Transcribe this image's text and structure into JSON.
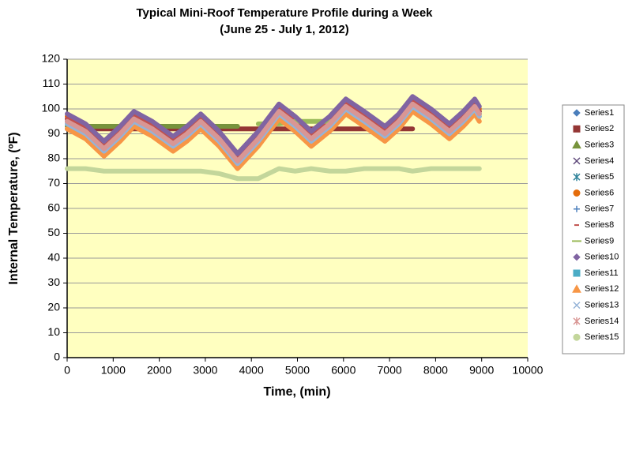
{
  "chart_data": {
    "type": "line",
    "title": "Typical Mini-Roof Temperature Profile during a Week",
    "subtitle": "(June 25 - July 1, 2012)",
    "x_label": "Time, (min)",
    "y_label": "Internal Temperature, (ºF)",
    "x": [
      0,
      400,
      800,
      1150,
      1450,
      1850,
      2300,
      2600,
      2900,
      3300,
      3700,
      4150,
      4600,
      4950,
      5300,
      5700,
      6050,
      6450,
      6900,
      7200,
      7500,
      7900,
      8300,
      8600,
      8850,
      8950
    ],
    "series": [
      {
        "name": "Series1",
        "color": "#4a7ebb",
        "marker": "diamond",
        "values": [
          96,
          92,
          85,
          91,
          97,
          93,
          87,
          91,
          96,
          89,
          80,
          89,
          100,
          95,
          89,
          95,
          102,
          97,
          91,
          96,
          103,
          98,
          92,
          97,
          102,
          99
        ]
      },
      {
        "name": "Series2",
        "color": "#943634",
        "marker": "square",
        "values": [
          92,
          92,
          92,
          92,
          92,
          92,
          92,
          92,
          92,
          92,
          92,
          92,
          92,
          92,
          92,
          92,
          92,
          92,
          92,
          92,
          92,
          null,
          null,
          null,
          null,
          null
        ]
      },
      {
        "name": "Series3",
        "color": "#77933c",
        "marker": "triangle",
        "values": [
          93,
          93,
          93,
          93,
          93,
          93,
          93,
          93,
          93,
          93,
          93,
          null,
          null,
          null,
          null,
          null,
          null,
          null,
          null,
          null,
          null,
          null,
          null,
          null,
          null,
          null
        ]
      },
      {
        "name": "Series4",
        "color": "#604a7b",
        "marker": "x",
        "values": [
          96,
          92,
          85,
          91,
          97,
          93,
          87,
          91,
          96,
          89,
          80,
          89,
          100,
          95,
          89,
          95,
          102,
          97,
          91,
          96,
          103,
          98,
          92,
          97,
          102,
          99
        ]
      },
      {
        "name": "Series5",
        "color": "#31849b",
        "marker": "star",
        "values": [
          95,
          91,
          84,
          90,
          96,
          92,
          86,
          90,
          95,
          88,
          79,
          88,
          99,
          94,
          88,
          94,
          101,
          96,
          90,
          95,
          102,
          97,
          91,
          96,
          101,
          98
        ]
      },
      {
        "name": "Series6",
        "color": "#e46c0a",
        "marker": "circle",
        "values": [
          97,
          93,
          86,
          92,
          98,
          94,
          88,
          92,
          97,
          90,
          81,
          90,
          101,
          96,
          90,
          96,
          103,
          98,
          92,
          97,
          104,
          99,
          93,
          98,
          103,
          100
        ]
      },
      {
        "name": "Series7",
        "color": "#4f81bd",
        "marker": "plus",
        "values": [
          95,
          91,
          84,
          90,
          96,
          92,
          86,
          90,
          95,
          88,
          79,
          88,
          99,
          94,
          88,
          94,
          101,
          96,
          90,
          95,
          102,
          97,
          91,
          96,
          101,
          98
        ]
      },
      {
        "name": "Series8",
        "color": "#c0504d",
        "marker": "dash",
        "values": [
          96,
          92,
          85,
          91,
          97,
          93,
          87,
          91,
          96,
          89,
          80,
          89,
          100,
          95,
          89,
          95,
          102,
          97,
          91,
          96,
          103,
          98,
          92,
          97,
          102,
          99
        ]
      },
      {
        "name": "Series9",
        "color": "#9bbb59",
        "marker": "longdash",
        "values": [
          null,
          null,
          null,
          null,
          null,
          null,
          null,
          null,
          null,
          null,
          null,
          94,
          94,
          95,
          95,
          95,
          null,
          null,
          null,
          null,
          null,
          null,
          null,
          null,
          null,
          null
        ]
      },
      {
        "name": "Series10",
        "color": "#8064a2",
        "marker": "diamond",
        "values": [
          98,
          94,
          87,
          93,
          99,
          95,
          89,
          93,
          98,
          91,
          82,
          91,
          102,
          97,
          91,
          97,
          104,
          99,
          93,
          98,
          105,
          100,
          94,
          99,
          104,
          101
        ]
      },
      {
        "name": "Series11",
        "color": "#4bacc6",
        "marker": "square",
        "values": [
          94,
          90,
          83,
          89,
          95,
          91,
          85,
          89,
          94,
          87,
          78,
          87,
          98,
          93,
          87,
          93,
          100,
          95,
          89,
          94,
          101,
          96,
          90,
          95,
          100,
          97
        ]
      },
      {
        "name": "Series12",
        "color": "#f79646",
        "marker": "triangle",
        "values": [
          92,
          88,
          81,
          87,
          93,
          89,
          83,
          87,
          92,
          85,
          76,
          85,
          96,
          91,
          85,
          91,
          98,
          93,
          87,
          92,
          99,
          94,
          88,
          93,
          98,
          95
        ]
      },
      {
        "name": "Series13",
        "color": "#95b3d7",
        "marker": "x",
        "values": [
          94,
          90,
          83,
          89,
          95,
          91,
          85,
          89,
          94,
          87,
          78,
          87,
          98,
          93,
          87,
          93,
          100,
          95,
          89,
          94,
          101,
          96,
          90,
          95,
          100,
          97
        ]
      },
      {
        "name": "Series14",
        "color": "#d99694",
        "marker": "star",
        "values": [
          95,
          91,
          84,
          90,
          96,
          92,
          86,
          90,
          95,
          88,
          79,
          88,
          99,
          94,
          88,
          94,
          101,
          96,
          90,
          95,
          102,
          97,
          91,
          96,
          101,
          98
        ]
      },
      {
        "name": "Series15",
        "color": "#c3d69b",
        "marker": "circle",
        "values": [
          76,
          76,
          75,
          75,
          75,
          75,
          75,
          75,
          75,
          74,
          72,
          72,
          76,
          75,
          76,
          75,
          75,
          76,
          76,
          76,
          75,
          76,
          76,
          76,
          76,
          76
        ]
      }
    ],
    "xlim": [
      0,
      10000
    ],
    "xticks": [
      0,
      1000,
      2000,
      3000,
      4000,
      5000,
      6000,
      7000,
      8000,
      9000,
      10000
    ],
    "ylim": [
      0,
      120
    ],
    "yticks": [
      0,
      10,
      20,
      30,
      40,
      50,
      60,
      70,
      80,
      90,
      100,
      110,
      120
    ],
    "grid": true,
    "legend": "right",
    "background": "#ffffc0"
  }
}
